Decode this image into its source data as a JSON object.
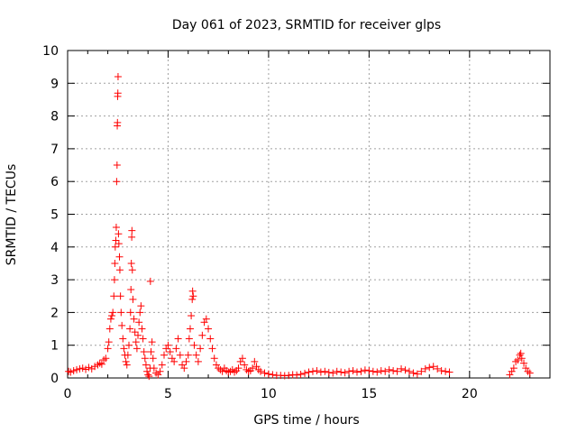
{
  "chart_data": {
    "type": "scatter",
    "title": "Day 061 of 2023, SRMTID for receiver glps",
    "xlabel": "GPS time / hours",
    "ylabel": "SRMTID / TECUs",
    "xlim": [
      0,
      24
    ],
    "ylim": [
      0,
      10
    ],
    "x_ticks": [
      0,
      5,
      10,
      15,
      20
    ],
    "y_ticks": [
      0,
      1,
      2,
      3,
      4,
      5,
      6,
      7,
      8,
      9,
      10
    ],
    "grid": true,
    "marker": "plus",
    "colors": {
      "series": "#ff0000",
      "grid": "#a0a0a0",
      "axis": "#000000"
    },
    "series": [
      {
        "points": [
          [
            0.05,
            0.2
          ],
          [
            0.15,
            0.18
          ],
          [
            0.3,
            0.22
          ],
          [
            0.45,
            0.25
          ],
          [
            0.6,
            0.28
          ],
          [
            0.75,
            0.3
          ],
          [
            0.9,
            0.26
          ],
          [
            1.05,
            0.32
          ],
          [
            1.2,
            0.28
          ],
          [
            1.35,
            0.35
          ],
          [
            1.5,
            0.4
          ],
          [
            1.6,
            0.45
          ],
          [
            1.7,
            0.42
          ],
          [
            1.8,
            0.55
          ],
          [
            1.9,
            0.6
          ],
          [
            2.0,
            0.9
          ],
          [
            2.05,
            1.1
          ],
          [
            2.1,
            1.5
          ],
          [
            2.15,
            1.8
          ],
          [
            2.2,
            1.9
          ],
          [
            2.25,
            2.0
          ],
          [
            2.3,
            2.5
          ],
          [
            2.33,
            3.0
          ],
          [
            2.35,
            3.5
          ],
          [
            2.37,
            4.0
          ],
          [
            2.4,
            4.2
          ],
          [
            2.42,
            4.6
          ],
          [
            2.44,
            6.0
          ],
          [
            2.46,
            6.5
          ],
          [
            2.47,
            7.7
          ],
          [
            2.48,
            7.8
          ],
          [
            2.49,
            8.6
          ],
          [
            2.5,
            8.7
          ],
          [
            2.51,
            9.2
          ],
          [
            2.53,
            4.4
          ],
          [
            2.55,
            4.1
          ],
          [
            2.58,
            3.7
          ],
          [
            2.6,
            3.3
          ],
          [
            2.63,
            2.5
          ],
          [
            2.66,
            2.0
          ],
          [
            2.7,
            1.6
          ],
          [
            2.75,
            1.2
          ],
          [
            2.8,
            0.9
          ],
          [
            2.85,
            0.7
          ],
          [
            2.9,
            0.5
          ],
          [
            2.95,
            0.4
          ],
          [
            3.0,
            0.7
          ],
          [
            3.05,
            1.0
          ],
          [
            3.1,
            1.5
          ],
          [
            3.13,
            2.0
          ],
          [
            3.15,
            2.7
          ],
          [
            3.17,
            3.5
          ],
          [
            3.19,
            4.3
          ],
          [
            3.2,
            4.5
          ],
          [
            3.22,
            3.3
          ],
          [
            3.25,
            2.4
          ],
          [
            3.3,
            1.8
          ],
          [
            3.35,
            1.4
          ],
          [
            3.4,
            1.1
          ],
          [
            3.45,
            0.9
          ],
          [
            3.5,
            1.3
          ],
          [
            3.55,
            1.7
          ],
          [
            3.6,
            2.0
          ],
          [
            3.65,
            2.2
          ],
          [
            3.7,
            1.5
          ],
          [
            3.75,
            1.2
          ],
          [
            3.8,
            0.8
          ],
          [
            3.85,
            0.6
          ],
          [
            3.9,
            0.4
          ],
          [
            3.95,
            0.2
          ],
          [
            4.0,
            0.1
          ],
          [
            4.05,
            0.05
          ],
          [
            4.1,
            0.3
          ],
          [
            4.12,
            2.95
          ],
          [
            4.15,
            0.8
          ],
          [
            4.2,
            1.1
          ],
          [
            4.25,
            0.6
          ],
          [
            4.3,
            0.3
          ],
          [
            4.4,
            0.15
          ],
          [
            4.5,
            0.1
          ],
          [
            4.6,
            0.2
          ],
          [
            4.7,
            0.4
          ],
          [
            4.8,
            0.7
          ],
          [
            4.9,
            0.9
          ],
          [
            5.0,
            1.0
          ],
          [
            5.1,
            0.8
          ],
          [
            5.2,
            0.6
          ],
          [
            5.3,
            0.5
          ],
          [
            5.4,
            0.9
          ],
          [
            5.5,
            1.2
          ],
          [
            5.6,
            0.7
          ],
          [
            5.7,
            0.4
          ],
          [
            5.8,
            0.3
          ],
          [
            5.9,
            0.5
          ],
          [
            6.0,
            0.7
          ],
          [
            6.05,
            1.2
          ],
          [
            6.1,
            1.5
          ],
          [
            6.15,
            1.9
          ],
          [
            6.2,
            2.4
          ],
          [
            6.22,
            2.65
          ],
          [
            6.25,
            2.5
          ],
          [
            6.3,
            1.0
          ],
          [
            6.4,
            0.7
          ],
          [
            6.5,
            0.5
          ],
          [
            6.6,
            0.9
          ],
          [
            6.7,
            1.3
          ],
          [
            6.8,
            1.7
          ],
          [
            6.9,
            1.8
          ],
          [
            7.0,
            1.5
          ],
          [
            7.1,
            1.2
          ],
          [
            7.2,
            0.9
          ],
          [
            7.3,
            0.6
          ],
          [
            7.4,
            0.4
          ],
          [
            7.5,
            0.3
          ],
          [
            7.6,
            0.25
          ],
          [
            7.7,
            0.2
          ],
          [
            7.8,
            0.3
          ],
          [
            7.9,
            0.22
          ],
          [
            8.0,
            0.18
          ],
          [
            8.1,
            0.2
          ],
          [
            8.2,
            0.25
          ],
          [
            8.3,
            0.18
          ],
          [
            8.4,
            0.22
          ],
          [
            8.5,
            0.3
          ],
          [
            8.6,
            0.5
          ],
          [
            8.7,
            0.6
          ],
          [
            8.8,
            0.4
          ],
          [
            8.9,
            0.25
          ],
          [
            9.0,
            0.2
          ],
          [
            9.1,
            0.22
          ],
          [
            9.2,
            0.3
          ],
          [
            9.3,
            0.5
          ],
          [
            9.4,
            0.35
          ],
          [
            9.5,
            0.25
          ],
          [
            9.6,
            0.2
          ],
          [
            9.8,
            0.15
          ],
          [
            10.0,
            0.12
          ],
          [
            10.2,
            0.1
          ],
          [
            10.4,
            0.08
          ],
          [
            10.6,
            0.08
          ],
          [
            10.8,
            0.07
          ],
          [
            11.0,
            0.08
          ],
          [
            11.2,
            0.1
          ],
          [
            11.4,
            0.09
          ],
          [
            11.6,
            0.11
          ],
          [
            11.8,
            0.14
          ],
          [
            12.0,
            0.18
          ],
          [
            12.2,
            0.2
          ],
          [
            12.4,
            0.22
          ],
          [
            12.6,
            0.18
          ],
          [
            12.8,
            0.2
          ],
          [
            13.0,
            0.17
          ],
          [
            13.2,
            0.15
          ],
          [
            13.4,
            0.2
          ],
          [
            13.6,
            0.18
          ],
          [
            13.8,
            0.16
          ],
          [
            14.0,
            0.2
          ],
          [
            14.2,
            0.22
          ],
          [
            14.4,
            0.18
          ],
          [
            14.6,
            0.2
          ],
          [
            14.8,
            0.24
          ],
          [
            15.0,
            0.22
          ],
          [
            15.2,
            0.2
          ],
          [
            15.4,
            0.18
          ],
          [
            15.6,
            0.22
          ],
          [
            15.8,
            0.2
          ],
          [
            16.0,
            0.25
          ],
          [
            16.2,
            0.22
          ],
          [
            16.4,
            0.2
          ],
          [
            16.6,
            0.28
          ],
          [
            16.8,
            0.24
          ],
          [
            17.0,
            0.2
          ],
          [
            17.2,
            0.15
          ],
          [
            17.4,
            0.12
          ],
          [
            17.6,
            0.2
          ],
          [
            17.8,
            0.28
          ],
          [
            18.0,
            0.32
          ],
          [
            18.2,
            0.35
          ],
          [
            18.4,
            0.28
          ],
          [
            18.6,
            0.22
          ],
          [
            18.8,
            0.2
          ],
          [
            19.0,
            0.18
          ],
          [
            22.0,
            0.1
          ],
          [
            22.1,
            0.2
          ],
          [
            22.2,
            0.3
          ],
          [
            22.3,
            0.5
          ],
          [
            22.4,
            0.55
          ],
          [
            22.5,
            0.7
          ],
          [
            22.55,
            0.75
          ],
          [
            22.6,
            0.6
          ],
          [
            22.7,
            0.45
          ],
          [
            22.8,
            0.3
          ],
          [
            22.9,
            0.2
          ],
          [
            23.0,
            0.15
          ]
        ]
      }
    ]
  }
}
